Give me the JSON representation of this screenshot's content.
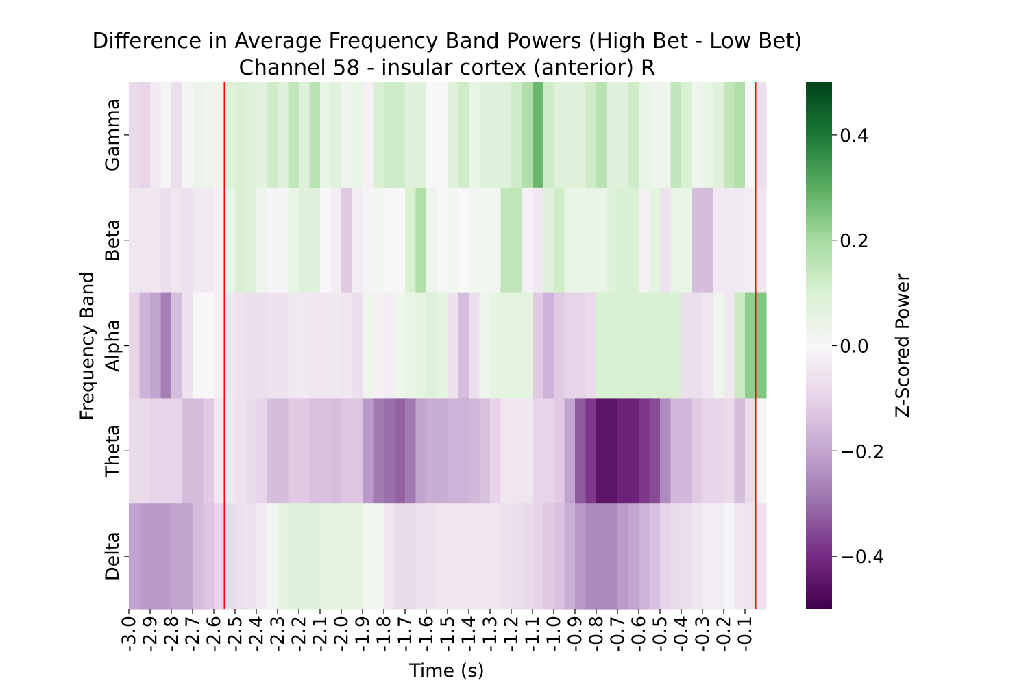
{
  "chart_data": {
    "type": "heatmap",
    "title": "Difference in Average Frequency Band Powers (High Bet - Low Bet)",
    "subtitle": "Channel 58 - insular cortex (anterior) R",
    "xlabel": "Time (s)",
    "ylabel": "Frequency Band",
    "colorbar_label": "Z-Scored Power",
    "rows": [
      "Gamma",
      "Beta",
      "Alpha",
      "Theta",
      "Delta"
    ],
    "x_tick_labels": [
      "-3.0",
      "-2.9",
      "-2.8",
      "-2.7",
      "-2.6",
      "-2.5",
      "-2.4",
      "-2.3",
      "-2.2",
      "-2.1",
      "-2.0",
      "-1.9",
      "-1.8",
      "-1.7",
      "-1.6",
      "-1.5",
      "-1.4",
      "-1.3",
      "-1.2",
      "-1.1",
      "-1.0",
      "-0.9",
      "-0.8",
      "-0.7",
      "-0.6",
      "-0.5",
      "-0.4",
      "-0.3",
      "-0.2",
      "-0.1"
    ],
    "colorbar_ticks": [
      "0.4",
      "0.2",
      "0.0",
      "−0.2",
      "−0.4"
    ],
    "vmin": -0.5,
    "vmax": 0.5,
    "colormap": [
      "#40004b",
      "#762a83",
      "#9970ab",
      "#c2a5cf",
      "#e7d4e8",
      "#f7f7f7",
      "#d9f0d3",
      "#a6dba0",
      "#5aae61",
      "#1b7837",
      "#00441b"
    ],
    "vlines_x": [
      -2.55,
      -0.05
    ],
    "vline_color": "#ff0000",
    "x_start": -3.0,
    "x_step": 0.05,
    "values": [
      [
        -0.08,
        -0.1,
        -0.04,
        -0.01,
        -0.07,
        0.01,
        0.04,
        0.03,
        0.03,
        0.08,
        0.1,
        0.08,
        0.07,
        0.12,
        0.08,
        0.15,
        0.08,
        0.16,
        0.05,
        0.08,
        0.03,
        0.05,
        -0.02,
        0.1,
        0.12,
        0.12,
        0.08,
        0.08,
        0.0,
        0.0,
        0.08,
        0.12,
        0.05,
        0.08,
        0.08,
        0.08,
        0.12,
        0.18,
        0.28,
        0.12,
        0.08,
        0.08,
        0.08,
        0.12,
        0.16,
        0.08,
        0.08,
        0.12,
        0.05,
        0.03,
        0.03,
        0.15,
        0.1,
        0.03,
        0.05,
        0.08,
        0.15,
        0.18,
        0.0,
        -0.07
      ],
      [
        -0.05,
        -0.05,
        -0.05,
        -0.07,
        -0.05,
        -0.06,
        -0.04,
        -0.04,
        -0.02,
        0.04,
        0.1,
        0.08,
        0.03,
        -0.01,
        -0.01,
        0.05,
        0.08,
        0.08,
        0.0,
        -0.03,
        -0.12,
        -0.03,
        -0.01,
        0.02,
        0.0,
        0.0,
        0.1,
        0.18,
        0.03,
        0.0,
        0.02,
        0.0,
        0.02,
        0.02,
        0.02,
        0.15,
        0.15,
        -0.02,
        -0.04,
        0.08,
        0.12,
        0.05,
        0.05,
        0.05,
        0.05,
        0.08,
        0.1,
        0.1,
        -0.02,
        0.06,
        -0.06,
        0.05,
        0.05,
        -0.15,
        -0.15,
        -0.04,
        -0.04,
        -0.04,
        -0.03,
        -0.05
      ],
      [
        -0.1,
        -0.17,
        -0.2,
        -0.27,
        -0.15,
        -0.06,
        0.0,
        0.0,
        -0.02,
        -0.05,
        -0.06,
        -0.07,
        -0.07,
        -0.06,
        -0.06,
        -0.04,
        -0.04,
        -0.05,
        -0.05,
        -0.04,
        -0.05,
        -0.07,
        0.03,
        -0.02,
        -0.03,
        0.03,
        0.05,
        0.06,
        0.08,
        0.06,
        -0.06,
        -0.15,
        -0.07,
        0.03,
        0.06,
        0.06,
        0.06,
        0.06,
        -0.12,
        -0.17,
        -0.12,
        -0.1,
        -0.1,
        -0.08,
        0.1,
        0.1,
        0.1,
        0.1,
        0.1,
        0.1,
        0.1,
        0.1,
        -0.07,
        -0.07,
        -0.05,
        0.03,
        -0.04,
        0.13,
        0.23,
        0.25
      ],
      [
        -0.08,
        -0.08,
        -0.1,
        -0.1,
        -0.1,
        -0.15,
        -0.15,
        -0.12,
        -0.04,
        -0.04,
        -0.06,
        -0.08,
        -0.1,
        -0.15,
        -0.15,
        -0.12,
        -0.12,
        -0.14,
        -0.14,
        -0.15,
        -0.13,
        -0.13,
        -0.22,
        -0.28,
        -0.3,
        -0.32,
        -0.28,
        -0.2,
        -0.18,
        -0.18,
        -0.17,
        -0.17,
        -0.16,
        -0.14,
        -0.1,
        -0.05,
        -0.05,
        -0.05,
        -0.1,
        -0.1,
        -0.12,
        -0.2,
        -0.33,
        -0.38,
        -0.45,
        -0.45,
        -0.42,
        -0.42,
        -0.38,
        -0.35,
        -0.25,
        -0.16,
        -0.16,
        -0.12,
        -0.1,
        -0.1,
        -0.08,
        -0.15,
        -0.08,
        -0.01
      ],
      [
        -0.2,
        -0.22,
        -0.22,
        -0.22,
        -0.2,
        -0.2,
        -0.15,
        -0.13,
        -0.1,
        -0.08,
        -0.07,
        -0.06,
        -0.04,
        0.02,
        0.06,
        0.08,
        0.08,
        0.08,
        0.06,
        0.06,
        0.06,
        0.06,
        0.02,
        0.02,
        -0.05,
        -0.08,
        -0.08,
        -0.06,
        -0.06,
        -0.05,
        -0.05,
        -0.05,
        -0.05,
        -0.05,
        -0.05,
        -0.06,
        -0.07,
        -0.08,
        -0.1,
        -0.12,
        -0.14,
        -0.18,
        -0.22,
        -0.25,
        -0.25,
        -0.25,
        -0.22,
        -0.2,
        -0.17,
        -0.14,
        -0.1,
        -0.08,
        -0.07,
        -0.05,
        -0.03,
        -0.03,
        -0.01,
        -0.05,
        -0.06,
        -0.06
      ]
    ]
  }
}
